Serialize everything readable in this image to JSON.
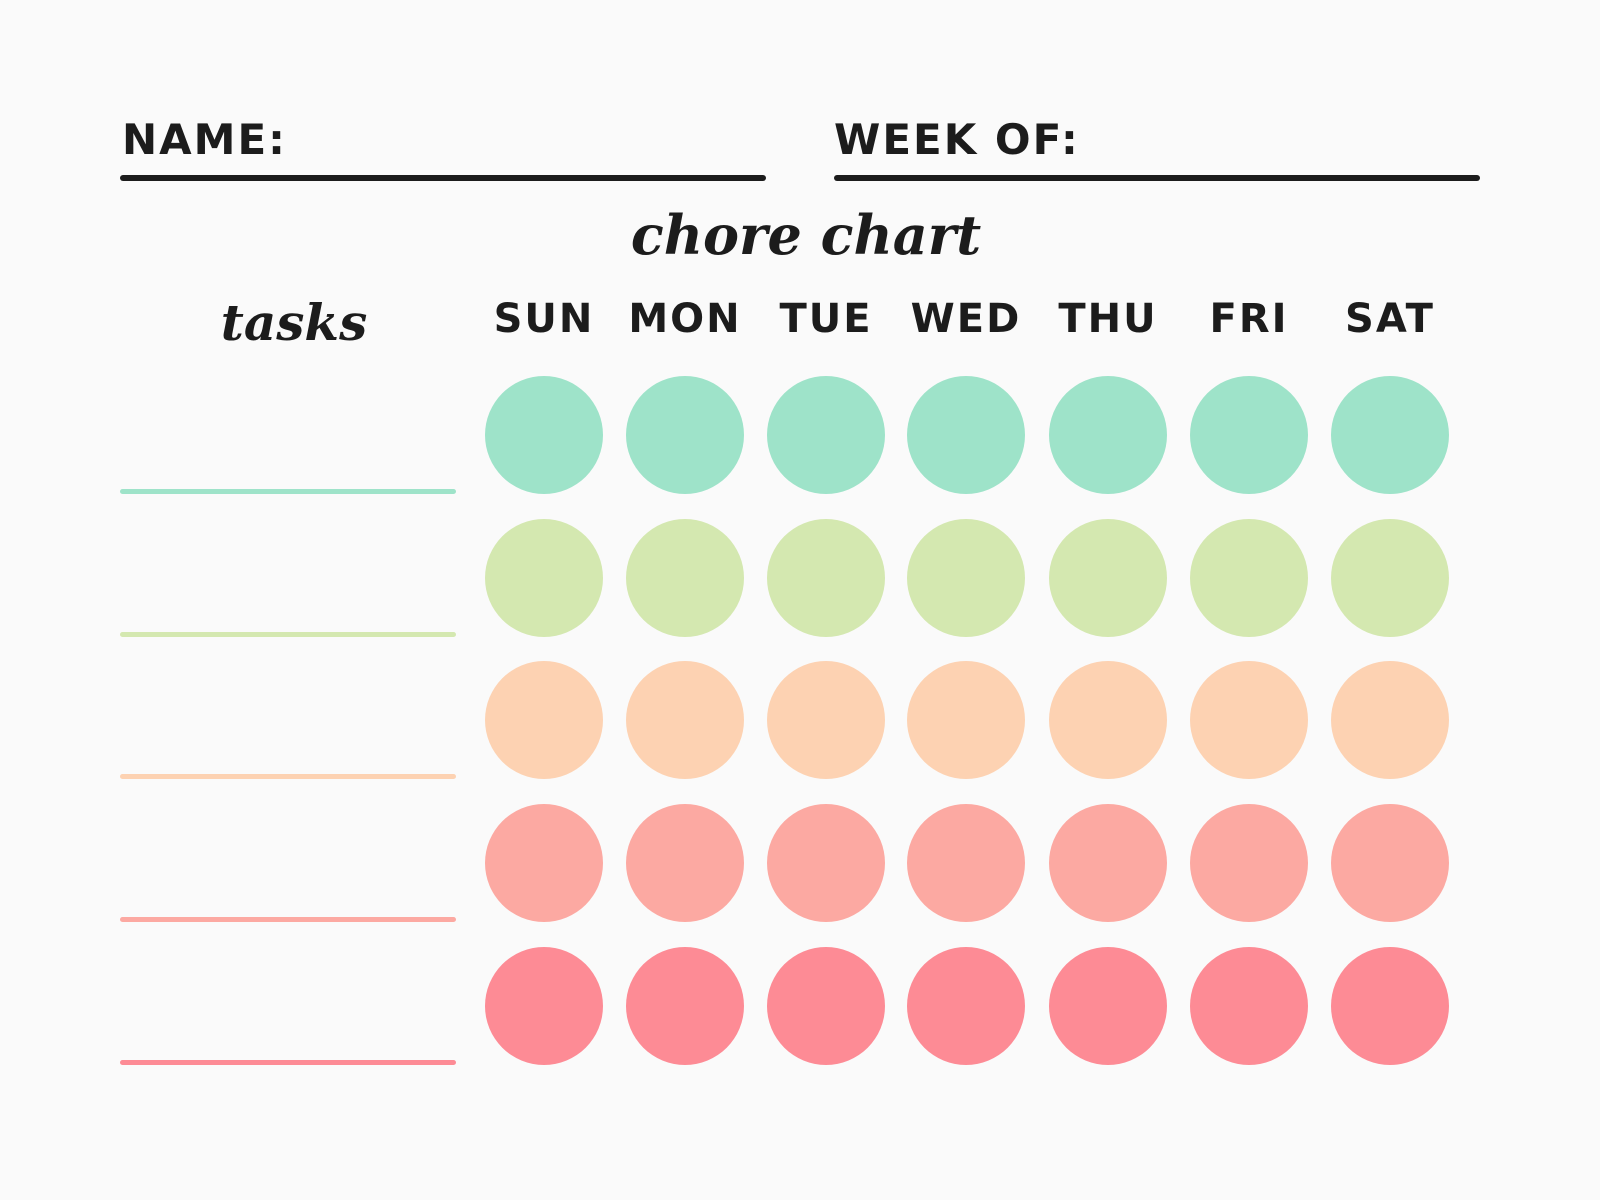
{
  "header": {
    "name_label": "NAME:",
    "week_label": "WEEK OF:"
  },
  "title": "chore chart",
  "tasks_label": "tasks",
  "days": [
    "SUN",
    "MON",
    "TUE",
    "WED",
    "THU",
    "FRI",
    "SAT"
  ],
  "rows": [
    {
      "color": "#9ee3c9",
      "task": ""
    },
    {
      "color": "#d4e8b0",
      "task": ""
    },
    {
      "color": "#fdd2b2",
      "task": ""
    },
    {
      "color": "#fca9a2",
      "task": ""
    },
    {
      "color": "#fd8b95",
      "task": ""
    }
  ]
}
